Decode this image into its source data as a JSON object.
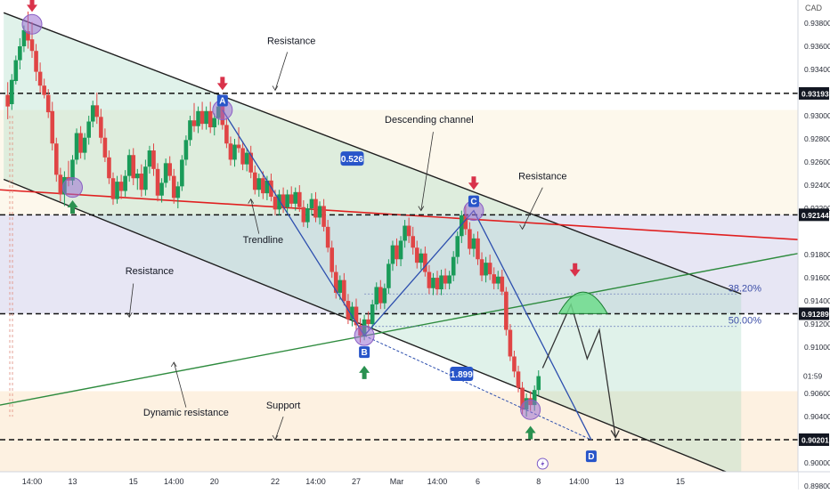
{
  "chart_data": {
    "type": "candlestick",
    "currency": "CAD",
    "yRange": [
      0.8977,
      0.94
    ],
    "xAxis": {
      "ticks": [
        {
          "label": "14:00",
          "day": 0
        },
        {
          "label": "13",
          "day": 1
        },
        {
          "label": "15",
          "day": 2.5
        },
        {
          "label": "14:00",
          "day": 3.5
        },
        {
          "label": "20",
          "day": 4.5
        },
        {
          "label": "22",
          "day": 6
        },
        {
          "label": "14:00",
          "day": 7
        },
        {
          "label": "27",
          "day": 8
        },
        {
          "label": "Mar",
          "day": 9
        },
        {
          "label": "14:00",
          "day": 10
        },
        {
          "label": "6",
          "day": 11
        },
        {
          "label": "8",
          "day": 12.5
        },
        {
          "label": "14:00",
          "day": 13.5
        },
        {
          "label": "13",
          "day": 14.5
        },
        {
          "label": "15",
          "day": 16
        }
      ]
    },
    "yAxis": {
      "ticks": [
        "0.93800",
        "0.93600",
        "0.93400",
        "0.93000",
        "0.92800",
        "0.92600",
        "0.92400",
        "0.92200",
        "0.91800",
        "0.91600",
        "0.91400",
        "0.91200",
        "0.91000",
        "0.90600",
        "0.90400",
        "0.90000",
        "0.89800"
      ],
      "levelBadges": [
        {
          "label": "0.93193",
          "value": 0.93193
        },
        {
          "label": "0.92144",
          "value": 0.92144
        },
        {
          "label": "0.91289",
          "value": 0.91289
        },
        {
          "label": "0.90201",
          "value": 0.90201
        }
      ],
      "currentPrice": {
        "label": "01:59",
        "value": 0.9075
      }
    },
    "fibLevels": [
      {
        "label": "38.20%",
        "value": 0.9146
      },
      {
        "label": "50.00%",
        "value": 0.9118
      }
    ],
    "points": [
      {
        "label": "A",
        "day": 4.7,
        "value": 0.9305
      },
      {
        "label": "B",
        "day": 8.2,
        "value": 0.911
      },
      {
        "label": "C",
        "day": 10.9,
        "value": 0.9218
      },
      {
        "label": "D",
        "day": 13.8,
        "value": 0.902
      }
    ],
    "measurements": [
      {
        "label": "0.526",
        "day": 7.9,
        "value": 0.9263
      },
      {
        "label": "1.899",
        "day": 10.6,
        "value": 0.9077
      }
    ],
    "annotations": [
      {
        "text": "Resistance",
        "day": 6.4,
        "value": 0.9362
      },
      {
        "text": "Descending channel",
        "day": 9.8,
        "value": 0.9294
      },
      {
        "text": "Resistance",
        "day": 12.6,
        "value": 0.9245
      },
      {
        "text": "Trendline",
        "day": 5.7,
        "value": 0.919
      },
      {
        "text": "Resistance",
        "day": 2.9,
        "value": 0.9163
      },
      {
        "text": "Dynamic resistance",
        "day": 3.8,
        "value": 0.9041
      },
      {
        "text": "Support",
        "day": 6.2,
        "value": 0.9047
      }
    ],
    "candles": [
      {
        "day": -0.6,
        "o": 0.9318,
        "h": 0.9329,
        "l": 0.9297,
        "c": 0.9308
      },
      {
        "day": -0.5,
        "o": 0.931,
        "h": 0.9336,
        "l": 0.9305,
        "c": 0.9331
      },
      {
        "day": -0.4,
        "o": 0.933,
        "h": 0.9352,
        "l": 0.9327,
        "c": 0.9348
      },
      {
        "day": -0.3,
        "o": 0.9348,
        "h": 0.9367,
        "l": 0.934,
        "c": 0.936
      },
      {
        "day": -0.2,
        "o": 0.936,
        "h": 0.9378,
        "l": 0.9355,
        "c": 0.9374
      },
      {
        "day": -0.1,
        "o": 0.9373,
        "h": 0.939,
        "l": 0.9358,
        "c": 0.9365
      },
      {
        "day": 0.0,
        "o": 0.9366,
        "h": 0.9381,
        "l": 0.935,
        "c": 0.9356
      },
      {
        "day": 0.1,
        "o": 0.9356,
        "h": 0.9362,
        "l": 0.933,
        "c": 0.9338
      },
      {
        "day": 0.2,
        "o": 0.9338,
        "h": 0.9346,
        "l": 0.932,
        "c": 0.9326
      },
      {
        "day": 0.3,
        "o": 0.9326,
        "h": 0.9332,
        "l": 0.9315,
        "c": 0.9318
      },
      {
        "day": 0.4,
        "o": 0.9318,
        "h": 0.9323,
        "l": 0.9298,
        "c": 0.9303
      },
      {
        "day": 0.5,
        "o": 0.9304,
        "h": 0.9312,
        "l": 0.927,
        "c": 0.9276
      },
      {
        "day": 0.6,
        "o": 0.9276,
        "h": 0.9281,
        "l": 0.9243,
        "c": 0.9249
      },
      {
        "day": 0.7,
        "o": 0.9249,
        "h": 0.9255,
        "l": 0.9226,
        "c": 0.9232
      },
      {
        "day": 0.8,
        "o": 0.9232,
        "h": 0.9252,
        "l": 0.9222,
        "c": 0.9247
      },
      {
        "day": 0.9,
        "o": 0.9247,
        "h": 0.9261,
        "l": 0.9239,
        "c": 0.9244
      },
      {
        "day": 1.0,
        "o": 0.9244,
        "h": 0.9266,
        "l": 0.924,
        "c": 0.9262
      },
      {
        "day": 1.1,
        "o": 0.9262,
        "h": 0.9289,
        "l": 0.9258,
        "c": 0.9285
      },
      {
        "day": 1.2,
        "o": 0.9285,
        "h": 0.9291,
        "l": 0.9263,
        "c": 0.9268
      },
      {
        "day": 1.3,
        "o": 0.9268,
        "h": 0.9285,
        "l": 0.9262,
        "c": 0.9281
      },
      {
        "day": 1.4,
        "o": 0.9281,
        "h": 0.93,
        "l": 0.9275,
        "c": 0.9295
      },
      {
        "day": 1.5,
        "o": 0.9295,
        "h": 0.9313,
        "l": 0.929,
        "c": 0.9309
      },
      {
        "day": 1.6,
        "o": 0.9309,
        "h": 0.932,
        "l": 0.9293,
        "c": 0.9299
      },
      {
        "day": 1.7,
        "o": 0.9299,
        "h": 0.9306,
        "l": 0.9276,
        "c": 0.9281
      },
      {
        "day": 1.8,
        "o": 0.9281,
        "h": 0.9289,
        "l": 0.926,
        "c": 0.9264
      },
      {
        "day": 1.9,
        "o": 0.9264,
        "h": 0.927,
        "l": 0.9241,
        "c": 0.9246
      },
      {
        "day": 2.0,
        "o": 0.9246,
        "h": 0.9251,
        "l": 0.9223,
        "c": 0.9228
      },
      {
        "day": 2.1,
        "o": 0.9228,
        "h": 0.9248,
        "l": 0.9224,
        "c": 0.9243
      },
      {
        "day": 2.2,
        "o": 0.9243,
        "h": 0.9249,
        "l": 0.9228,
        "c": 0.9235
      },
      {
        "day": 2.3,
        "o": 0.9235,
        "h": 0.9253,
        "l": 0.923,
        "c": 0.9248
      },
      {
        "day": 2.4,
        "o": 0.9248,
        "h": 0.9271,
        "l": 0.9243,
        "c": 0.9266
      },
      {
        "day": 2.5,
        "o": 0.9266,
        "h": 0.9272,
        "l": 0.924,
        "c": 0.9246
      },
      {
        "day": 2.6,
        "o": 0.9246,
        "h": 0.9254,
        "l": 0.9236,
        "c": 0.925
      },
      {
        "day": 2.7,
        "o": 0.925,
        "h": 0.9258,
        "l": 0.923,
        "c": 0.9236
      },
      {
        "day": 2.8,
        "o": 0.9236,
        "h": 0.9262,
        "l": 0.9231,
        "c": 0.9256
      },
      {
        "day": 2.9,
        "o": 0.9256,
        "h": 0.9274,
        "l": 0.925,
        "c": 0.927
      },
      {
        "day": 3.0,
        "o": 0.927,
        "h": 0.9276,
        "l": 0.9248,
        "c": 0.9254
      },
      {
        "day": 3.1,
        "o": 0.9254,
        "h": 0.9259,
        "l": 0.9226,
        "c": 0.9231
      },
      {
        "day": 3.2,
        "o": 0.9231,
        "h": 0.9246,
        "l": 0.9225,
        "c": 0.9242
      },
      {
        "day": 3.3,
        "o": 0.9242,
        "h": 0.9263,
        "l": 0.9238,
        "c": 0.9259
      },
      {
        "day": 3.4,
        "o": 0.9259,
        "h": 0.9265,
        "l": 0.9244,
        "c": 0.9248
      },
      {
        "day": 3.5,
        "o": 0.9248,
        "h": 0.9254,
        "l": 0.9224,
        "c": 0.9229
      },
      {
        "day": 3.6,
        "o": 0.9229,
        "h": 0.9243,
        "l": 0.922,
        "c": 0.9239
      },
      {
        "day": 3.7,
        "o": 0.9239,
        "h": 0.9266,
        "l": 0.9235,
        "c": 0.9262
      },
      {
        "day": 3.8,
        "o": 0.9262,
        "h": 0.9283,
        "l": 0.9257,
        "c": 0.9279
      },
      {
        "day": 3.9,
        "o": 0.9279,
        "h": 0.93,
        "l": 0.9274,
        "c": 0.9296
      },
      {
        "day": 4.0,
        "o": 0.9296,
        "h": 0.9311,
        "l": 0.9286,
        "c": 0.9291
      },
      {
        "day": 4.1,
        "o": 0.9291,
        "h": 0.9308,
        "l": 0.9285,
        "c": 0.9304
      },
      {
        "day": 4.2,
        "o": 0.9304,
        "h": 0.9312,
        "l": 0.9288,
        "c": 0.9293
      },
      {
        "day": 4.3,
        "o": 0.9293,
        "h": 0.9308,
        "l": 0.9288,
        "c": 0.9304
      },
      {
        "day": 4.4,
        "o": 0.9304,
        "h": 0.9312,
        "l": 0.9285,
        "c": 0.929
      },
      {
        "day": 4.5,
        "o": 0.929,
        "h": 0.9302,
        "l": 0.9283,
        "c": 0.9298
      },
      {
        "day": 4.6,
        "o": 0.9298,
        "h": 0.9318,
        "l": 0.9292,
        "c": 0.9308
      },
      {
        "day": 4.7,
        "o": 0.9308,
        "h": 0.9314,
        "l": 0.9288,
        "c": 0.9292
      },
      {
        "day": 4.8,
        "o": 0.9292,
        "h": 0.9298,
        "l": 0.9272,
        "c": 0.9276
      },
      {
        "day": 4.9,
        "o": 0.9276,
        "h": 0.9282,
        "l": 0.9257,
        "c": 0.9262
      },
      {
        "day": 5.0,
        "o": 0.9262,
        "h": 0.928,
        "l": 0.9256,
        "c": 0.9275
      },
      {
        "day": 5.1,
        "o": 0.9275,
        "h": 0.929,
        "l": 0.9268,
        "c": 0.9272
      },
      {
        "day": 5.2,
        "o": 0.9272,
        "h": 0.9278,
        "l": 0.9253,
        "c": 0.9258
      },
      {
        "day": 5.3,
        "o": 0.9258,
        "h": 0.9272,
        "l": 0.9252,
        "c": 0.9268
      },
      {
        "day": 5.4,
        "o": 0.9268,
        "h": 0.9274,
        "l": 0.9246,
        "c": 0.9251
      },
      {
        "day": 5.5,
        "o": 0.9251,
        "h": 0.9257,
        "l": 0.9232,
        "c": 0.9236
      },
      {
        "day": 5.6,
        "o": 0.9236,
        "h": 0.925,
        "l": 0.923,
        "c": 0.9246
      },
      {
        "day": 5.7,
        "o": 0.9246,
        "h": 0.9252,
        "l": 0.9228,
        "c": 0.9233
      },
      {
        "day": 5.8,
        "o": 0.9233,
        "h": 0.9248,
        "l": 0.9227,
        "c": 0.9244
      },
      {
        "day": 5.9,
        "o": 0.9244,
        "h": 0.925,
        "l": 0.9226,
        "c": 0.923
      },
      {
        "day": 6.0,
        "o": 0.923,
        "h": 0.9236,
        "l": 0.9214,
        "c": 0.9219
      },
      {
        "day": 6.1,
        "o": 0.9219,
        "h": 0.9236,
        "l": 0.9214,
        "c": 0.9232
      },
      {
        "day": 6.2,
        "o": 0.9232,
        "h": 0.9238,
        "l": 0.9216,
        "c": 0.9221
      },
      {
        "day": 6.3,
        "o": 0.9221,
        "h": 0.9236,
        "l": 0.9215,
        "c": 0.9232
      },
      {
        "day": 6.4,
        "o": 0.9232,
        "h": 0.9239,
        "l": 0.922,
        "c": 0.9224
      },
      {
        "day": 6.5,
        "o": 0.9224,
        "h": 0.9238,
        "l": 0.9218,
        "c": 0.9234
      },
      {
        "day": 6.6,
        "o": 0.9234,
        "h": 0.924,
        "l": 0.9217,
        "c": 0.9221
      },
      {
        "day": 6.7,
        "o": 0.9221,
        "h": 0.9227,
        "l": 0.9204,
        "c": 0.9208
      },
      {
        "day": 6.8,
        "o": 0.9208,
        "h": 0.9224,
        "l": 0.9203,
        "c": 0.922
      },
      {
        "day": 6.9,
        "o": 0.922,
        "h": 0.9233,
        "l": 0.9214,
        "c": 0.9228
      },
      {
        "day": 7.0,
        "o": 0.9228,
        "h": 0.9234,
        "l": 0.9208,
        "c": 0.9212
      },
      {
        "day": 7.1,
        "o": 0.9212,
        "h": 0.9226,
        "l": 0.9206,
        "c": 0.9222
      },
      {
        "day": 7.2,
        "o": 0.9222,
        "h": 0.9228,
        "l": 0.92,
        "c": 0.9204
      },
      {
        "day": 7.3,
        "o": 0.9204,
        "h": 0.921,
        "l": 0.9182,
        "c": 0.9186
      },
      {
        "day": 7.4,
        "o": 0.9186,
        "h": 0.9192,
        "l": 0.916,
        "c": 0.9165
      },
      {
        "day": 7.5,
        "o": 0.9165,
        "h": 0.9171,
        "l": 0.9142,
        "c": 0.9147
      },
      {
        "day": 7.6,
        "o": 0.9147,
        "h": 0.9162,
        "l": 0.9141,
        "c": 0.9158
      },
      {
        "day": 7.7,
        "o": 0.9158,
        "h": 0.9164,
        "l": 0.9136,
        "c": 0.914
      },
      {
        "day": 7.8,
        "o": 0.914,
        "h": 0.9146,
        "l": 0.912,
        "c": 0.9124
      },
      {
        "day": 7.9,
        "o": 0.9124,
        "h": 0.9139,
        "l": 0.9118,
        "c": 0.9135
      },
      {
        "day": 8.0,
        "o": 0.9135,
        "h": 0.9142,
        "l": 0.9114,
        "c": 0.9119
      },
      {
        "day": 8.1,
        "o": 0.9119,
        "h": 0.9125,
        "l": 0.9104,
        "c": 0.911
      },
      {
        "day": 8.2,
        "o": 0.911,
        "h": 0.9128,
        "l": 0.9106,
        "c": 0.9124
      },
      {
        "day": 8.3,
        "o": 0.9124,
        "h": 0.9131,
        "l": 0.9115,
        "c": 0.912
      },
      {
        "day": 8.4,
        "o": 0.912,
        "h": 0.9141,
        "l": 0.9116,
        "c": 0.9137
      },
      {
        "day": 8.5,
        "o": 0.9137,
        "h": 0.9156,
        "l": 0.9132,
        "c": 0.9152
      },
      {
        "day": 8.6,
        "o": 0.9152,
        "h": 0.9158,
        "l": 0.9133,
        "c": 0.9138
      },
      {
        "day": 8.7,
        "o": 0.9138,
        "h": 0.9155,
        "l": 0.9133,
        "c": 0.9151
      },
      {
        "day": 8.8,
        "o": 0.9151,
        "h": 0.9176,
        "l": 0.9146,
        "c": 0.9172
      },
      {
        "day": 8.9,
        "o": 0.9172,
        "h": 0.9192,
        "l": 0.9166,
        "c": 0.9188
      },
      {
        "day": 9.0,
        "o": 0.9188,
        "h": 0.9194,
        "l": 0.917,
        "c": 0.9176
      },
      {
        "day": 9.1,
        "o": 0.9176,
        "h": 0.9196,
        "l": 0.917,
        "c": 0.9192
      },
      {
        "day": 9.2,
        "o": 0.9192,
        "h": 0.921,
        "l": 0.9186,
        "c": 0.9205
      },
      {
        "day": 9.3,
        "o": 0.9205,
        "h": 0.9212,
        "l": 0.919,
        "c": 0.9196
      },
      {
        "day": 9.4,
        "o": 0.9196,
        "h": 0.9204,
        "l": 0.918,
        "c": 0.9186
      },
      {
        "day": 9.5,
        "o": 0.9186,
        "h": 0.9192,
        "l": 0.9168,
        "c": 0.9173
      },
      {
        "day": 9.6,
        "o": 0.9173,
        "h": 0.9185,
        "l": 0.9167,
        "c": 0.9181
      },
      {
        "day": 9.7,
        "o": 0.9181,
        "h": 0.9187,
        "l": 0.9161,
        "c": 0.9165
      },
      {
        "day": 9.8,
        "o": 0.9165,
        "h": 0.9171,
        "l": 0.9146,
        "c": 0.9151
      },
      {
        "day": 9.9,
        "o": 0.9151,
        "h": 0.9164,
        "l": 0.9145,
        "c": 0.916
      },
      {
        "day": 10.0,
        "o": 0.916,
        "h": 0.9166,
        "l": 0.9145,
        "c": 0.915
      },
      {
        "day": 10.1,
        "o": 0.915,
        "h": 0.9167,
        "l": 0.9145,
        "c": 0.9162
      },
      {
        "day": 10.2,
        "o": 0.9162,
        "h": 0.9168,
        "l": 0.915,
        "c": 0.9155
      },
      {
        "day": 10.3,
        "o": 0.9155,
        "h": 0.9166,
        "l": 0.915,
        "c": 0.9162
      },
      {
        "day": 10.4,
        "o": 0.9162,
        "h": 0.9183,
        "l": 0.9157,
        "c": 0.9178
      },
      {
        "day": 10.5,
        "o": 0.9178,
        "h": 0.92,
        "l": 0.9172,
        "c": 0.9196
      },
      {
        "day": 10.6,
        "o": 0.9196,
        "h": 0.9218,
        "l": 0.919,
        "c": 0.9214
      },
      {
        "day": 10.7,
        "o": 0.9214,
        "h": 0.9222,
        "l": 0.9197,
        "c": 0.9202
      },
      {
        "day": 10.8,
        "o": 0.9202,
        "h": 0.9208,
        "l": 0.918,
        "c": 0.9185
      },
      {
        "day": 10.9,
        "o": 0.9185,
        "h": 0.9198,
        "l": 0.9178,
        "c": 0.9194
      },
      {
        "day": 11.0,
        "o": 0.9194,
        "h": 0.92,
        "l": 0.9171,
        "c": 0.9176
      },
      {
        "day": 11.1,
        "o": 0.9176,
        "h": 0.9182,
        "l": 0.9157,
        "c": 0.9162
      },
      {
        "day": 11.2,
        "o": 0.9162,
        "h": 0.9178,
        "l": 0.9156,
        "c": 0.9173
      },
      {
        "day": 11.3,
        "o": 0.9173,
        "h": 0.918,
        "l": 0.9158,
        "c": 0.9163
      },
      {
        "day": 11.4,
        "o": 0.9163,
        "h": 0.9169,
        "l": 0.915,
        "c": 0.9155
      },
      {
        "day": 11.5,
        "o": 0.9155,
        "h": 0.9166,
        "l": 0.915,
        "c": 0.9161
      },
      {
        "day": 11.6,
        "o": 0.9161,
        "h": 0.9167,
        "l": 0.9145,
        "c": 0.9148
      },
      {
        "day": 11.7,
        "o": 0.9148,
        "h": 0.9152,
        "l": 0.911,
        "c": 0.9115
      },
      {
        "day": 11.8,
        "o": 0.9115,
        "h": 0.912,
        "l": 0.9088,
        "c": 0.9092
      },
      {
        "day": 11.9,
        "o": 0.9092,
        "h": 0.9097,
        "l": 0.9074,
        "c": 0.9079
      },
      {
        "day": 12.0,
        "o": 0.9079,
        "h": 0.9084,
        "l": 0.9061,
        "c": 0.9065
      },
      {
        "day": 12.1,
        "o": 0.9065,
        "h": 0.907,
        "l": 0.9042,
        "c": 0.9046
      },
      {
        "day": 12.2,
        "o": 0.9046,
        "h": 0.906,
        "l": 0.904,
        "c": 0.9056
      },
      {
        "day": 12.3,
        "o": 0.9056,
        "h": 0.9062,
        "l": 0.9045,
        "c": 0.905
      },
      {
        "day": 12.4,
        "o": 0.905,
        "h": 0.9067,
        "l": 0.9045,
        "c": 0.9063
      },
      {
        "day": 12.5,
        "o": 0.9063,
        "h": 0.908,
        "l": 0.9058,
        "c": 0.9075
      }
    ]
  }
}
